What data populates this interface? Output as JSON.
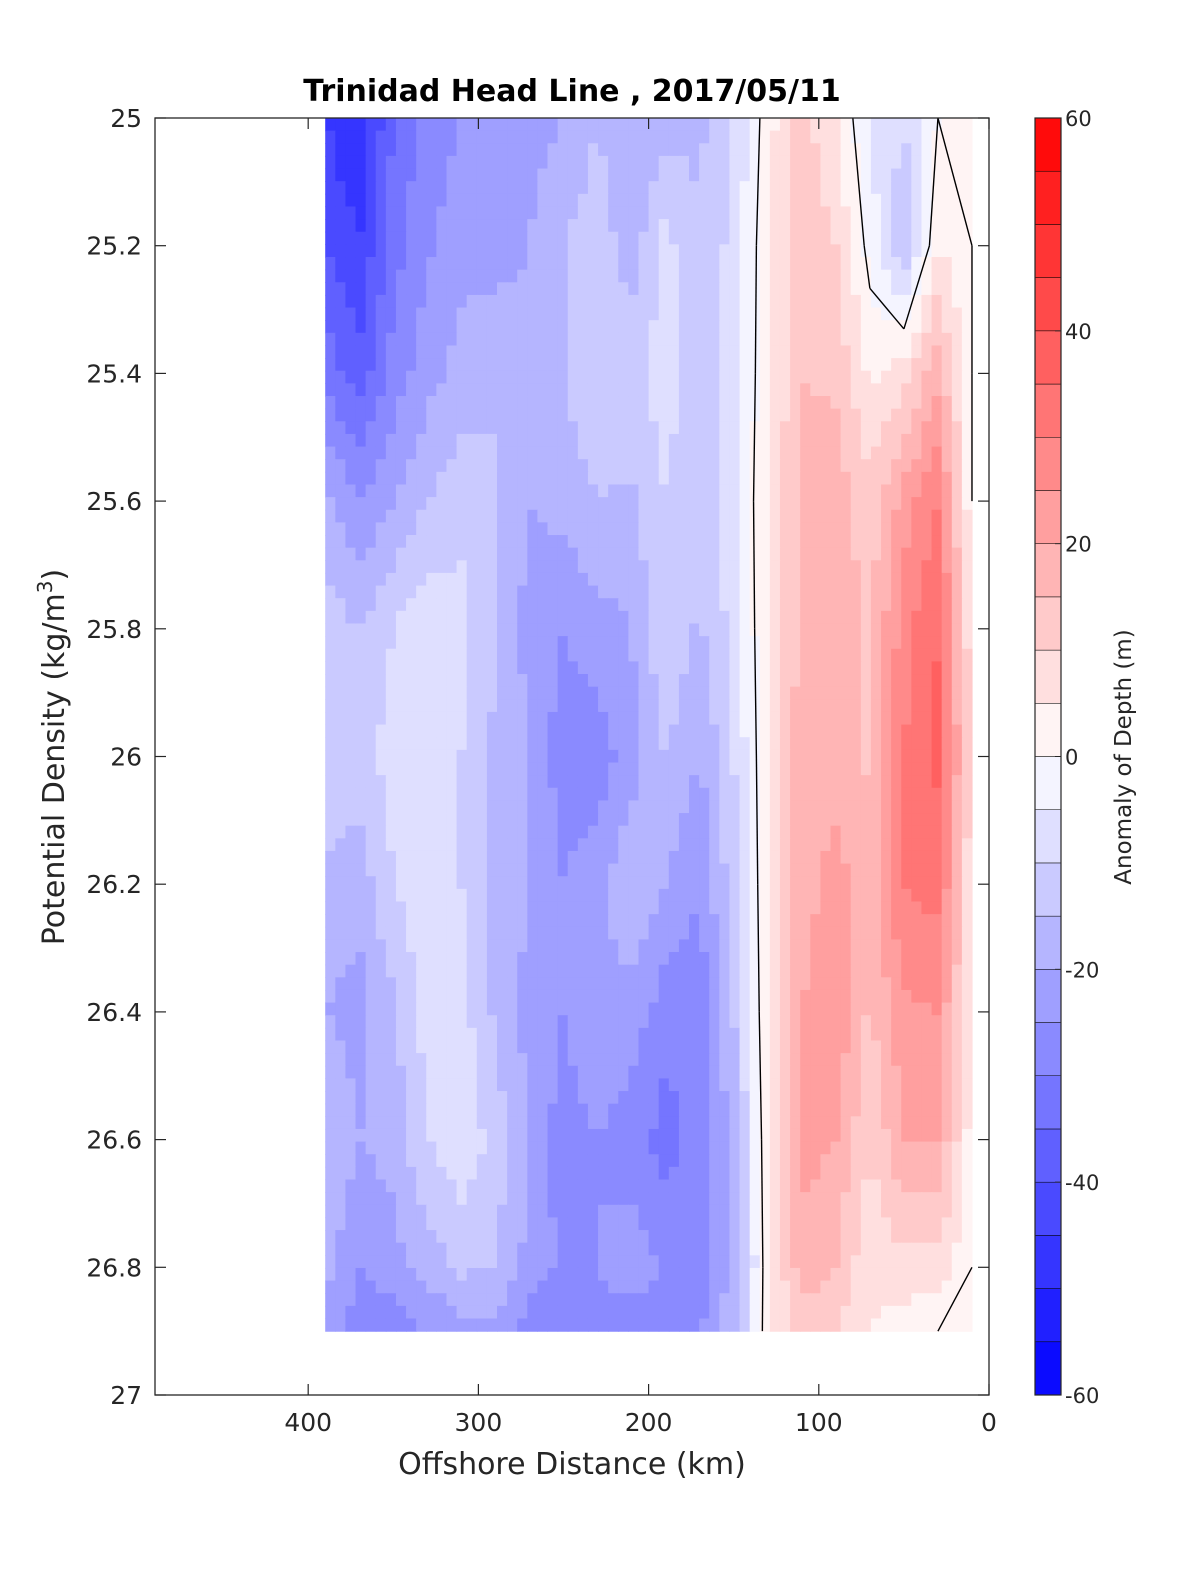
{
  "chart_data": {
    "type": "heatmap",
    "title": "Trinidad Head Line , 2017/05/11",
    "xlabel": "Offshore Distance (km)",
    "ylabel_main": "Potential Density (kg/m",
    "ylabel_sup": "3",
    "ylabel_end": ")",
    "colorbar_label": "Anomaly of Depth (m)",
    "x_direction": "reversed",
    "y_direction": "reversed",
    "xlim": [
      0,
      490
    ],
    "ylim": [
      25,
      27
    ],
    "x_ticks": [
      400,
      300,
      200,
      100,
      0
    ],
    "x_tick_labels": [
      "400",
      "300",
      "200",
      "100",
      "0"
    ],
    "y_ticks": [
      25,
      25.2,
      25.4,
      25.6,
      25.8,
      26,
      26.2,
      26.4,
      26.6,
      26.8,
      27
    ],
    "y_tick_labels": [
      "25",
      "25.2",
      "25.4",
      "25.6",
      "25.8",
      "26",
      "26.2",
      "26.4",
      "26.6",
      "26.8",
      "27"
    ],
    "clim": [
      -60,
      60
    ],
    "contour_interval": 5,
    "colorbar_ticks": [
      60,
      40,
      20,
      0,
      -20,
      -40,
      -60
    ],
    "colorbar_tick_labels": [
      "60",
      "40",
      "20",
      "0",
      "-20",
      "-40",
      "-60"
    ],
    "colormap": {
      "negative": "#0000ff",
      "zero": "#ffffff",
      "positive": "#ff0000"
    },
    "zero_contour_color": "#000000",
    "grid": false,
    "x": [
      390,
      370,
      350,
      330,
      310,
      290,
      270,
      250,
      230,
      210,
      190,
      170,
      150,
      130,
      110,
      90,
      70,
      50,
      30,
      10
    ],
    "y": [
      25.0,
      25.2,
      25.4,
      25.6,
      25.8,
      26.0,
      26.2,
      26.4,
      26.6,
      26.8,
      26.9
    ],
    "z": [
      [
        -45,
        -50,
        -35,
        -28,
        -25,
        -25,
        -22,
        -20,
        -15,
        -20,
        -17,
        -16,
        -10,
        3,
        12,
        5,
        -5,
        -10,
        0,
        0
      ],
      [
        -40,
        -45,
        -32,
        -26,
        -22,
        -22,
        -20,
        -15,
        -12,
        -18,
        -8,
        -15,
        -8,
        4,
        15,
        10,
        -2,
        -15,
        5,
        0
      ],
      [
        -32,
        -38,
        -28,
        -22,
        -18,
        -16,
        -18,
        -15,
        -10,
        -12,
        -7,
        -14,
        -7,
        4,
        15,
        14,
        4,
        8,
        18,
        0
      ],
      [
        -18,
        -25,
        -20,
        -15,
        -12,
        -14,
        -20,
        -18,
        -15,
        -16,
        -10,
        -15,
        -7,
        5,
        16,
        18,
        12,
        22,
        30,
        0
      ],
      [
        -12,
        -15,
        -10,
        -6,
        -8,
        -15,
        -22,
        -25,
        -22,
        -20,
        -10,
        -16,
        -8,
        5,
        17,
        18,
        14,
        28,
        35,
        5
      ],
      [
        -12,
        -12,
        -8,
        -6,
        -10,
        -16,
        -20,
        -28,
        -28,
        -22,
        -15,
        -20,
        -10,
        5,
        18,
        18,
        14,
        30,
        36,
        8
      ],
      [
        -16,
        -18,
        -10,
        -6,
        -10,
        -16,
        -20,
        -25,
        -22,
        -16,
        -20,
        -25,
        -12,
        5,
        18,
        22,
        17,
        30,
        32,
        5
      ],
      [
        -20,
        -22,
        -16,
        -8,
        -8,
        -16,
        -22,
        -25,
        -20,
        -22,
        -28,
        -28,
        -15,
        5,
        20,
        24,
        14,
        24,
        25,
        5
      ],
      [
        -14,
        -20,
        -18,
        -10,
        -6,
        -12,
        -20,
        -28,
        -25,
        -28,
        -32,
        -28,
        -18,
        4,
        22,
        20,
        10,
        20,
        20,
        2
      ],
      [
        -18,
        -25,
        -22,
        -18,
        -14,
        -15,
        -22,
        -26,
        -25,
        -22,
        -26,
        -28,
        -18,
        3,
        18,
        15,
        6,
        8,
        8,
        0
      ],
      [
        -22,
        -28,
        -28,
        -25,
        -22,
        -22,
        -28,
        -30,
        -28,
        -28,
        -28,
        -26,
        -16,
        3,
        12,
        10,
        5,
        3,
        0,
        0
      ]
    ]
  }
}
